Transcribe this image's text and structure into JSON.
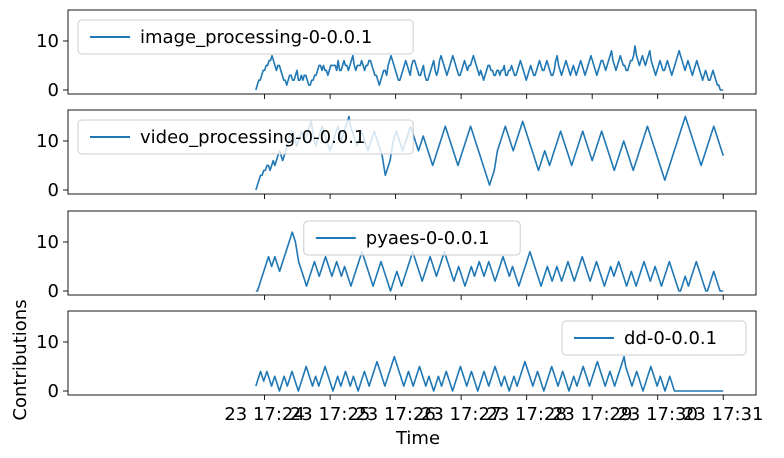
{
  "chart_data": {
    "type": "line",
    "xlabel": "Time",
    "ylabel": "Contributions",
    "x_ticks": [
      "23 17:24",
      "23 17:25",
      "23 17:26",
      "23 17:27",
      "23 17:28",
      "23 17:29",
      "23 17:30",
      "23 17:31"
    ],
    "y_ticks": [
      0,
      10
    ],
    "ylim": [
      0,
      15.5
    ],
    "x_range": [
      "17:24:00",
      "17:31:00"
    ],
    "series_color": "#1f77b4",
    "legend_placement": [
      "upper-left",
      "upper-left",
      "upper-center",
      "upper-right"
    ],
    "series": [
      {
        "name": "image_processing-0-0.0.1",
        "values": [
          0,
          1,
          2,
          2,
          3,
          4,
          4,
          5,
          5,
          6,
          6,
          7,
          6,
          5,
          4,
          5,
          5,
          4,
          3,
          2,
          2,
          1,
          2,
          3,
          3,
          2,
          2,
          3,
          4,
          2,
          2,
          3,
          2,
          3,
          3,
          2,
          1,
          1,
          2,
          2,
          3,
          3,
          4,
          5,
          5,
          4,
          5,
          4,
          4,
          3,
          4,
          5,
          5,
          5,
          5,
          4,
          6,
          4,
          4,
          5,
          6,
          5,
          5,
          4,
          5,
          6,
          7,
          5,
          4,
          5,
          5,
          5,
          6,
          5,
          4,
          5,
          5,
          6,
          6,
          5,
          4,
          3,
          3,
          2,
          1,
          2,
          3,
          4,
          4,
          3,
          5,
          6,
          7,
          6,
          5,
          4,
          3,
          2,
          2,
          3,
          4,
          5,
          6,
          5,
          4,
          3,
          5,
          6,
          6,
          5,
          4,
          3,
          3,
          4,
          5,
          3,
          2,
          2,
          3,
          4,
          5,
          6,
          4,
          3,
          4,
          6,
          7,
          6,
          5,
          4,
          3,
          4,
          5,
          6,
          7,
          6,
          5,
          4,
          3,
          3,
          4,
          5,
          6,
          5,
          4,
          5,
          5,
          6,
          7,
          6,
          5,
          4,
          3,
          4,
          3,
          2,
          3,
          4,
          5,
          5,
          4,
          4,
          3,
          3,
          4,
          4,
          3,
          4,
          4,
          5,
          3,
          3,
          4,
          4,
          5,
          4,
          3,
          3,
          4,
          5,
          6,
          5,
          4,
          3,
          2,
          3,
          4,
          5,
          4,
          3,
          3,
          4,
          5,
          6,
          5,
          4,
          4,
          5,
          6,
          5,
          4,
          3,
          3,
          4,
          6,
          7,
          5,
          4,
          3,
          4,
          5,
          6,
          5,
          4,
          3,
          4,
          5,
          4,
          3,
          4,
          5,
          6,
          5,
          4,
          3,
          4,
          5,
          6,
          7,
          6,
          5,
          4,
          3,
          4,
          5,
          6,
          6,
          5,
          4,
          5,
          6,
          7,
          8,
          6,
          5,
          4,
          5,
          6,
          7,
          6,
          5,
          5,
          4,
          4,
          5,
          6,
          6,
          7,
          9,
          7,
          6,
          5,
          6,
          7,
          6,
          5,
          6,
          7,
          8,
          6,
          5,
          4,
          3,
          4,
          5,
          6,
          5,
          4,
          4,
          5,
          6,
          5,
          4,
          3,
          4,
          5,
          6,
          7,
          8,
          7,
          6,
          5,
          4,
          5,
          6,
          5,
          4,
          3,
          4,
          5,
          6,
          5,
          4,
          3,
          2,
          3,
          4,
          3,
          2,
          2,
          3,
          4,
          3,
          2,
          1,
          1,
          0,
          0,
          0
        ]
      },
      {
        "name": "video_processing-0-0.0.1",
        "values": [
          0,
          1,
          2,
          3,
          3,
          4,
          4,
          5,
          5,
          4,
          5,
          6,
          5,
          6,
          7,
          8,
          7,
          6,
          7,
          8,
          9,
          10,
          11,
          12,
          11,
          10,
          9,
          10,
          11,
          12,
          11,
          10,
          11,
          12,
          13,
          14,
          12,
          10,
          9,
          10,
          11,
          12,
          13,
          12,
          11,
          10,
          9,
          8,
          9,
          10,
          11,
          12,
          13,
          12,
          10,
          11,
          12,
          13,
          14,
          15,
          13,
          12,
          11,
          10,
          9,
          10,
          11,
          12,
          11,
          10,
          9,
          8,
          9,
          10,
          11,
          12,
          11,
          10,
          9,
          8,
          7,
          5,
          3,
          4,
          5,
          6,
          8,
          10,
          11,
          12,
          11,
          10,
          9,
          8,
          9,
          10,
          11,
          12,
          13,
          12,
          11,
          10,
          9,
          8,
          9,
          10,
          11,
          10,
          9,
          8,
          7,
          6,
          5,
          6,
          7,
          8,
          9,
          10,
          11,
          12,
          13,
          12,
          11,
          10,
          9,
          8,
          7,
          6,
          5,
          6,
          7,
          8,
          9,
          10,
          11,
          12,
          13,
          12,
          11,
          10,
          9,
          8,
          7,
          6,
          5,
          4,
          3,
          2,
          1,
          2,
          3,
          4,
          6,
          8,
          9,
          10,
          11,
          12,
          13,
          12,
          11,
          10,
          9,
          8,
          9,
          10,
          11,
          12,
          13,
          14,
          13,
          12,
          11,
          10,
          9,
          8,
          7,
          6,
          5,
          4,
          5,
          6,
          7,
          8,
          7,
          6,
          5,
          6,
          7,
          8,
          9,
          10,
          11,
          12,
          11,
          10,
          9,
          8,
          7,
          6,
          5,
          6,
          7,
          8,
          9,
          10,
          11,
          12,
          11,
          10,
          9,
          8,
          7,
          6,
          7,
          8,
          9,
          10,
          11,
          12,
          11,
          10,
          9,
          8,
          7,
          6,
          5,
          4,
          5,
          6,
          7,
          8,
          9,
          10,
          9,
          8,
          7,
          6,
          5,
          4,
          5,
          6,
          7,
          8,
          9,
          10,
          11,
          12,
          13,
          12,
          11,
          10,
          9,
          8,
          7,
          6,
          5,
          4,
          3,
          2,
          3,
          4,
          5,
          6,
          7,
          8,
          9,
          10,
          11,
          12,
          13,
          14,
          15,
          14,
          13,
          12,
          11,
          10,
          9,
          8,
          7,
          6,
          5,
          6,
          7,
          8,
          9,
          10,
          11,
          12,
          13,
          12,
          11,
          10,
          9,
          8,
          7
        ]
      },
      {
        "name": "pyaes-0-0.0.1",
        "values": [
          0,
          0,
          1,
          2,
          3,
          4,
          5,
          6,
          7,
          6,
          5,
          6,
          7,
          6,
          5,
          4,
          5,
          6,
          7,
          8,
          9,
          10,
          11,
          12,
          11,
          10,
          8,
          6,
          5,
          4,
          3,
          2,
          1,
          2,
          3,
          4,
          5,
          6,
          5,
          4,
          3,
          4,
          5,
          6,
          7,
          6,
          5,
          4,
          3,
          4,
          5,
          6,
          5,
          4,
          3,
          4,
          5,
          4,
          3,
          2,
          1,
          2,
          3,
          4,
          5,
          6,
          7,
          8,
          7,
          6,
          5,
          4,
          3,
          2,
          1,
          2,
          3,
          4,
          5,
          6,
          5,
          4,
          3,
          2,
          1,
          0,
          1,
          2,
          3,
          4,
          3,
          2,
          1,
          2,
          3,
          4,
          5,
          6,
          7,
          8,
          7,
          6,
          5,
          4,
          3,
          2,
          3,
          4,
          5,
          6,
          7,
          6,
          5,
          4,
          3,
          4,
          5,
          6,
          7,
          8,
          7,
          6,
          5,
          4,
          3,
          2,
          3,
          4,
          5,
          4,
          3,
          2,
          1,
          2,
          3,
          4,
          5,
          4,
          3,
          4,
          5,
          6,
          5,
          4,
          3,
          4,
          5,
          6,
          5,
          4,
          3,
          2,
          3,
          4,
          5,
          6,
          7,
          6,
          5,
          4,
          3,
          4,
          5,
          4,
          3,
          2,
          1,
          2,
          3,
          4,
          5,
          6,
          7,
          8,
          7,
          6,
          5,
          4,
          3,
          2,
          1,
          2,
          3,
          4,
          5,
          4,
          3,
          2,
          3,
          4,
          5,
          4,
          3,
          2,
          3,
          4,
          5,
          6,
          5,
          4,
          3,
          2,
          3,
          4,
          5,
          6,
          7,
          6,
          5,
          4,
          3,
          2,
          3,
          4,
          5,
          6,
          5,
          4,
          3,
          2,
          1,
          2,
          3,
          4,
          5,
          4,
          3,
          4,
          5,
          6,
          5,
          4,
          3,
          2,
          1,
          2,
          3,
          4,
          3,
          2,
          1,
          2,
          3,
          4,
          5,
          6,
          5,
          4,
          3,
          2,
          3,
          4,
          5,
          4,
          3,
          2,
          1,
          2,
          3,
          4,
          5,
          6,
          5,
          4,
          3,
          2,
          1,
          0,
          0,
          1,
          2,
          3,
          2,
          1,
          2,
          3,
          4,
          5,
          6,
          5,
          4,
          3,
          2,
          1,
          0,
          0,
          1,
          2,
          3,
          4,
          3,
          2,
          1,
          0,
          0,
          0
        ]
      },
      {
        "name": "dd-0-0.0.1",
        "values": [
          1,
          2,
          3,
          4,
          3,
          2,
          3,
          4,
          3,
          2,
          1,
          2,
          3,
          2,
          1,
          0,
          1,
          2,
          3,
          2,
          1,
          2,
          3,
          4,
          3,
          2,
          1,
          0,
          1,
          2,
          3,
          4,
          5,
          4,
          3,
          2,
          1,
          2,
          3,
          2,
          1,
          2,
          3,
          4,
          5,
          4,
          3,
          2,
          1,
          0,
          1,
          2,
          3,
          2,
          1,
          2,
          3,
          4,
          3,
          2,
          1,
          2,
          3,
          2,
          1,
          0,
          1,
          2,
          3,
          4,
          3,
          2,
          1,
          2,
          3,
          4,
          5,
          6,
          5,
          4,
          3,
          2,
          1,
          2,
          3,
          4,
          5,
          6,
          7,
          6,
          5,
          4,
          3,
          2,
          1,
          2,
          3,
          4,
          3,
          2,
          1,
          2,
          3,
          4,
          5,
          4,
          3,
          2,
          1,
          2,
          3,
          2,
          1,
          0,
          1,
          2,
          3,
          2,
          1,
          2,
          3,
          4,
          3,
          2,
          1,
          0,
          1,
          2,
          3,
          4,
          5,
          4,
          3,
          2,
          1,
          2,
          3,
          4,
          3,
          2,
          1,
          0,
          1,
          2,
          3,
          4,
          3,
          2,
          1,
          2,
          3,
          4,
          5,
          4,
          3,
          2,
          1,
          2,
          3,
          2,
          1,
          0,
          1,
          2,
          3,
          2,
          1,
          2,
          3,
          4,
          5,
          6,
          5,
          4,
          3,
          2,
          1,
          2,
          3,
          4,
          3,
          2,
          1,
          0,
          1,
          2,
          3,
          4,
          5,
          4,
          3,
          2,
          1,
          2,
          3,
          4,
          3,
          2,
          1,
          0,
          1,
          2,
          3,
          2,
          1,
          2,
          3,
          4,
          5,
          4,
          3,
          2,
          1,
          2,
          3,
          4,
          5,
          6,
          5,
          4,
          3,
          2,
          1,
          2,
          3,
          4,
          3,
          2,
          1,
          2,
          3,
          4,
          5,
          6,
          7,
          5,
          4,
          3,
          2,
          1,
          2,
          3,
          4,
          3,
          2,
          1,
          0,
          1,
          2,
          3,
          4,
          5,
          4,
          3,
          2,
          1,
          2,
          3,
          2,
          1,
          0,
          1,
          2,
          3,
          2,
          1,
          0,
          0,
          0,
          0,
          0,
          0,
          0,
          0,
          0,
          0,
          0,
          0,
          0,
          0,
          0,
          0,
          0,
          0,
          0,
          0,
          0,
          0,
          0,
          0,
          0,
          0,
          0,
          0,
          0,
          0,
          0,
          0
        ]
      }
    ]
  }
}
